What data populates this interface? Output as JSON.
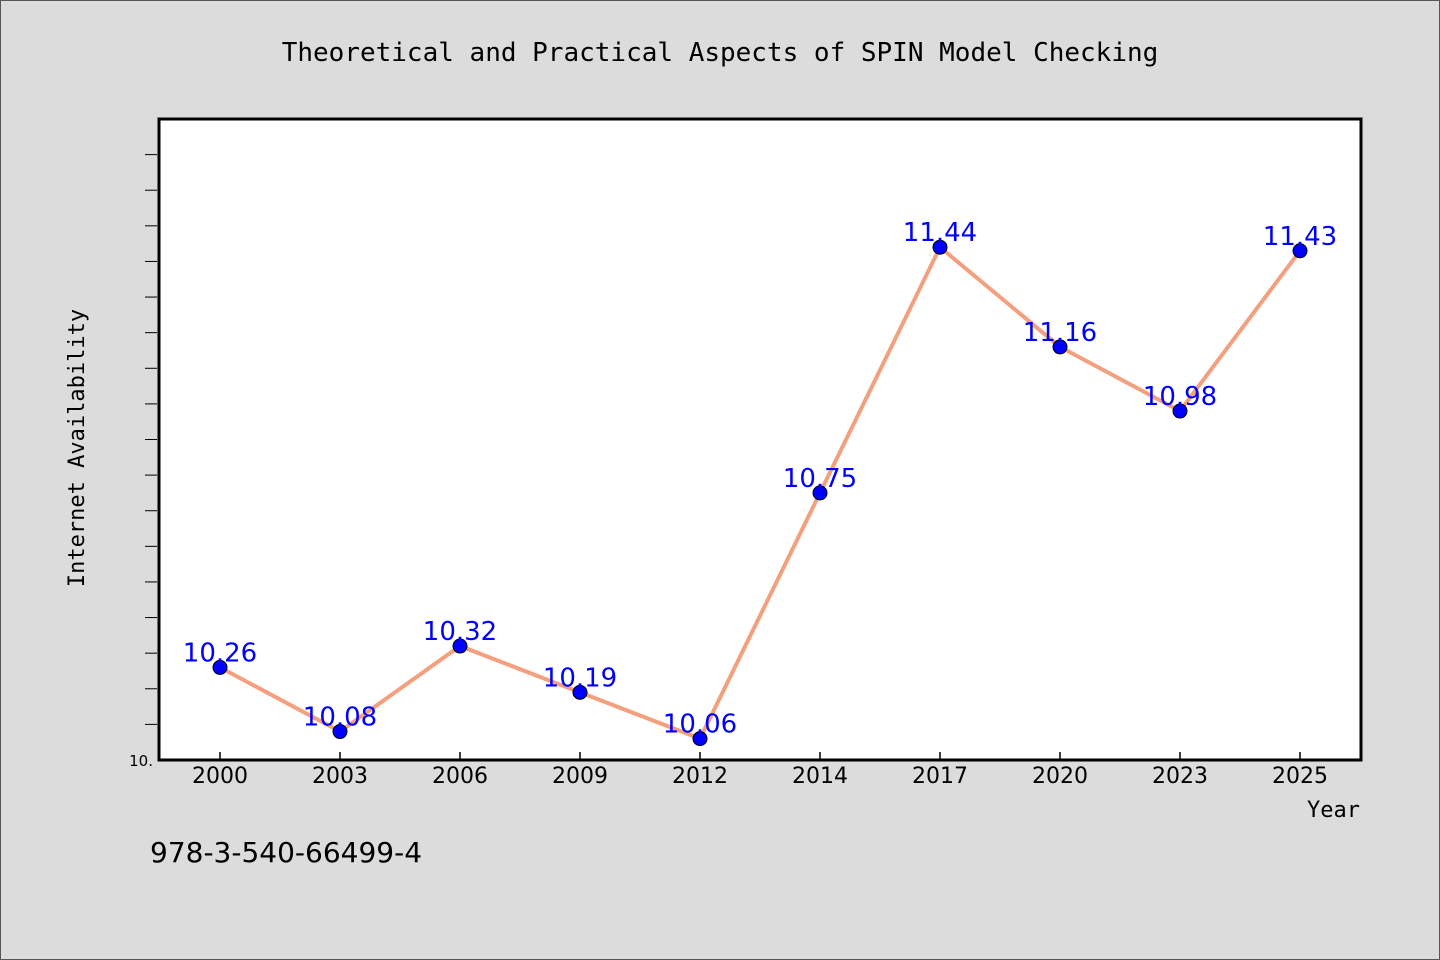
{
  "chart_data": {
    "type": "line",
    "title": "Theoretical and Practical Aspects of SPIN Model Checking",
    "xlabel": "Year",
    "ylabel": "Internet Availability",
    "categories": [
      "2000",
      "2003",
      "2006",
      "2009",
      "2012",
      "2014",
      "2017",
      "2020",
      "2023",
      "2025"
    ],
    "series": [
      {
        "values": [
          10.26,
          10.08,
          10.32,
          10.19,
          10.06,
          10.75,
          11.44,
          11.16,
          10.98,
          11.43
        ]
      }
    ],
    "data_labels": [
      "10.26",
      "10.08",
      "10.32",
      "10.19",
      "10.06",
      "10.75",
      "11.44",
      "11.16",
      "10.98",
      "11.43"
    ],
    "y_tick_label": "10.",
    "ylim": [
      10.0,
      11.8
    ],
    "grid": false,
    "line_color": "#f4a07e",
    "marker_color": "#0000ff",
    "label_color": "#0000ff"
  },
  "footer": {
    "isbn": "978-3-540-66499-4"
  }
}
